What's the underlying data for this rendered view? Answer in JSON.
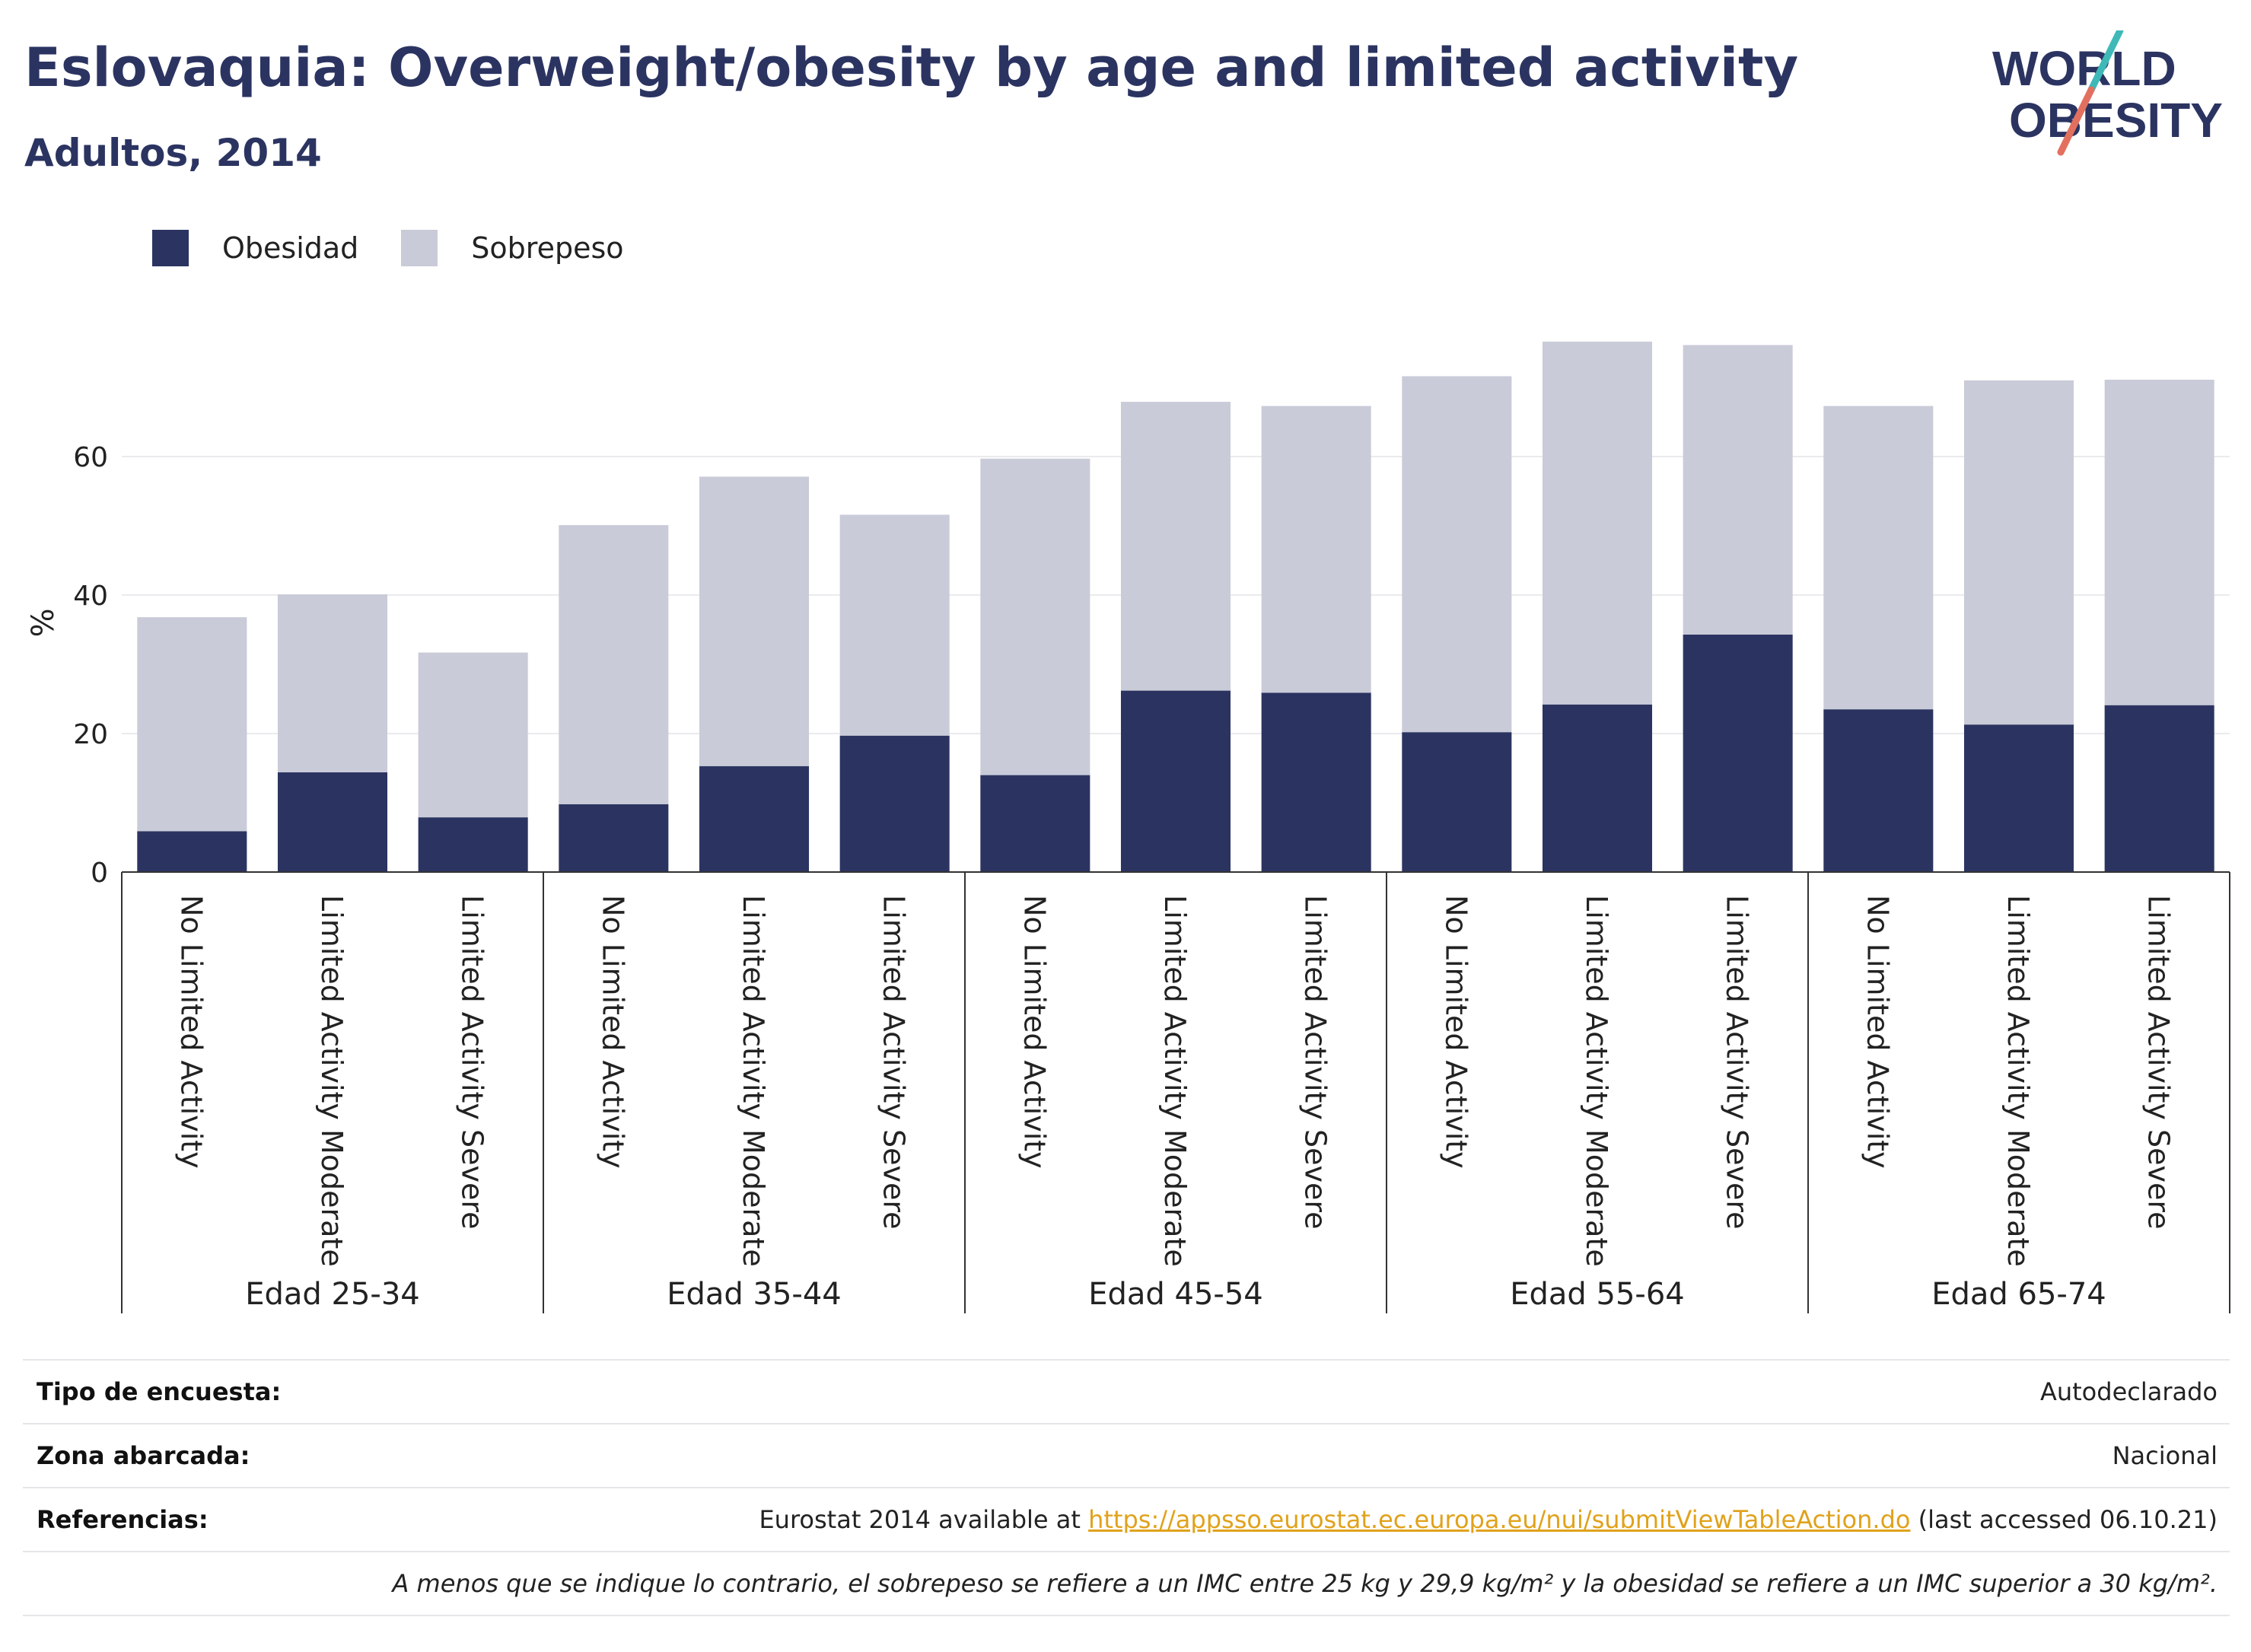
{
  "header": {
    "title": "Eslovaquia: Overweight/obesity by age and limited activity",
    "subtitle": "Adultos, 2014"
  },
  "logo": {
    "line1": "WORLD",
    "line2": "OBESITY"
  },
  "colors": {
    "obesity": "#2b3461",
    "overweight": "#c9cbd8",
    "accent_teal": "#3fb9b8",
    "accent_coral": "#e3705e",
    "link": "#e0a21b"
  },
  "chart_data": {
    "type": "bar",
    "stacked": true,
    "ylabel": "%",
    "ylim": [
      0,
      80
    ],
    "yticks": [
      0,
      20,
      40,
      60
    ],
    "grid": true,
    "legend_position": "top-left",
    "groups": [
      {
        "label": "Edad 25-34",
        "categories": [
          "No Limited Activity",
          "Limited Activity Moderate",
          "Limited Activity Severe"
        ]
      },
      {
        "label": "Edad 35-44",
        "categories": [
          "No Limited Activity",
          "Limited Activity Moderate",
          "Limited Activity Severe"
        ]
      },
      {
        "label": "Edad 45-54",
        "categories": [
          "No Limited Activity",
          "Limited Activity Moderate",
          "Limited Activity Severe"
        ]
      },
      {
        "label": "Edad 55-64",
        "categories": [
          "No Limited Activity",
          "Limited Activity Moderate",
          "Limited Activity Severe"
        ]
      },
      {
        "label": "Edad 65-74",
        "categories": [
          "No Limited Activity",
          "Limited Activity Moderate",
          "Limited Activity Severe"
        ]
      }
    ],
    "series": [
      {
        "name": "Obesidad",
        "values": [
          5.9,
          14.4,
          7.9,
          9.8,
          15.3,
          19.7,
          14.0,
          26.2,
          25.9,
          20.2,
          24.2,
          34.3,
          23.5,
          21.3,
          24.1
        ]
      },
      {
        "name": "Sobrepeso",
        "values": [
          30.9,
          25.7,
          23.8,
          40.3,
          41.8,
          31.9,
          45.7,
          41.7,
          41.4,
          51.4,
          52.4,
          41.8,
          43.8,
          49.7,
          47.0
        ]
      }
    ]
  },
  "meta": {
    "survey_label": "Tipo de encuesta:",
    "survey_value": "Autodeclarado",
    "area_label": "Zona abarcada:",
    "area_value": "Nacional",
    "refs_label": "Referencias:",
    "refs_prefix": "Eurostat 2014 available at ",
    "refs_link": "https://appsso.eurostat.ec.europa.eu/nui/submitViewTableAction.do",
    "refs_suffix": " (last accessed 06.10.21)",
    "note": "A menos que se indique lo contrario, el sobrepeso se refiere a un IMC entre 25 kg y 29,9 kg/m² y la obesidad se refiere a un IMC superior a 30 kg/m²."
  }
}
